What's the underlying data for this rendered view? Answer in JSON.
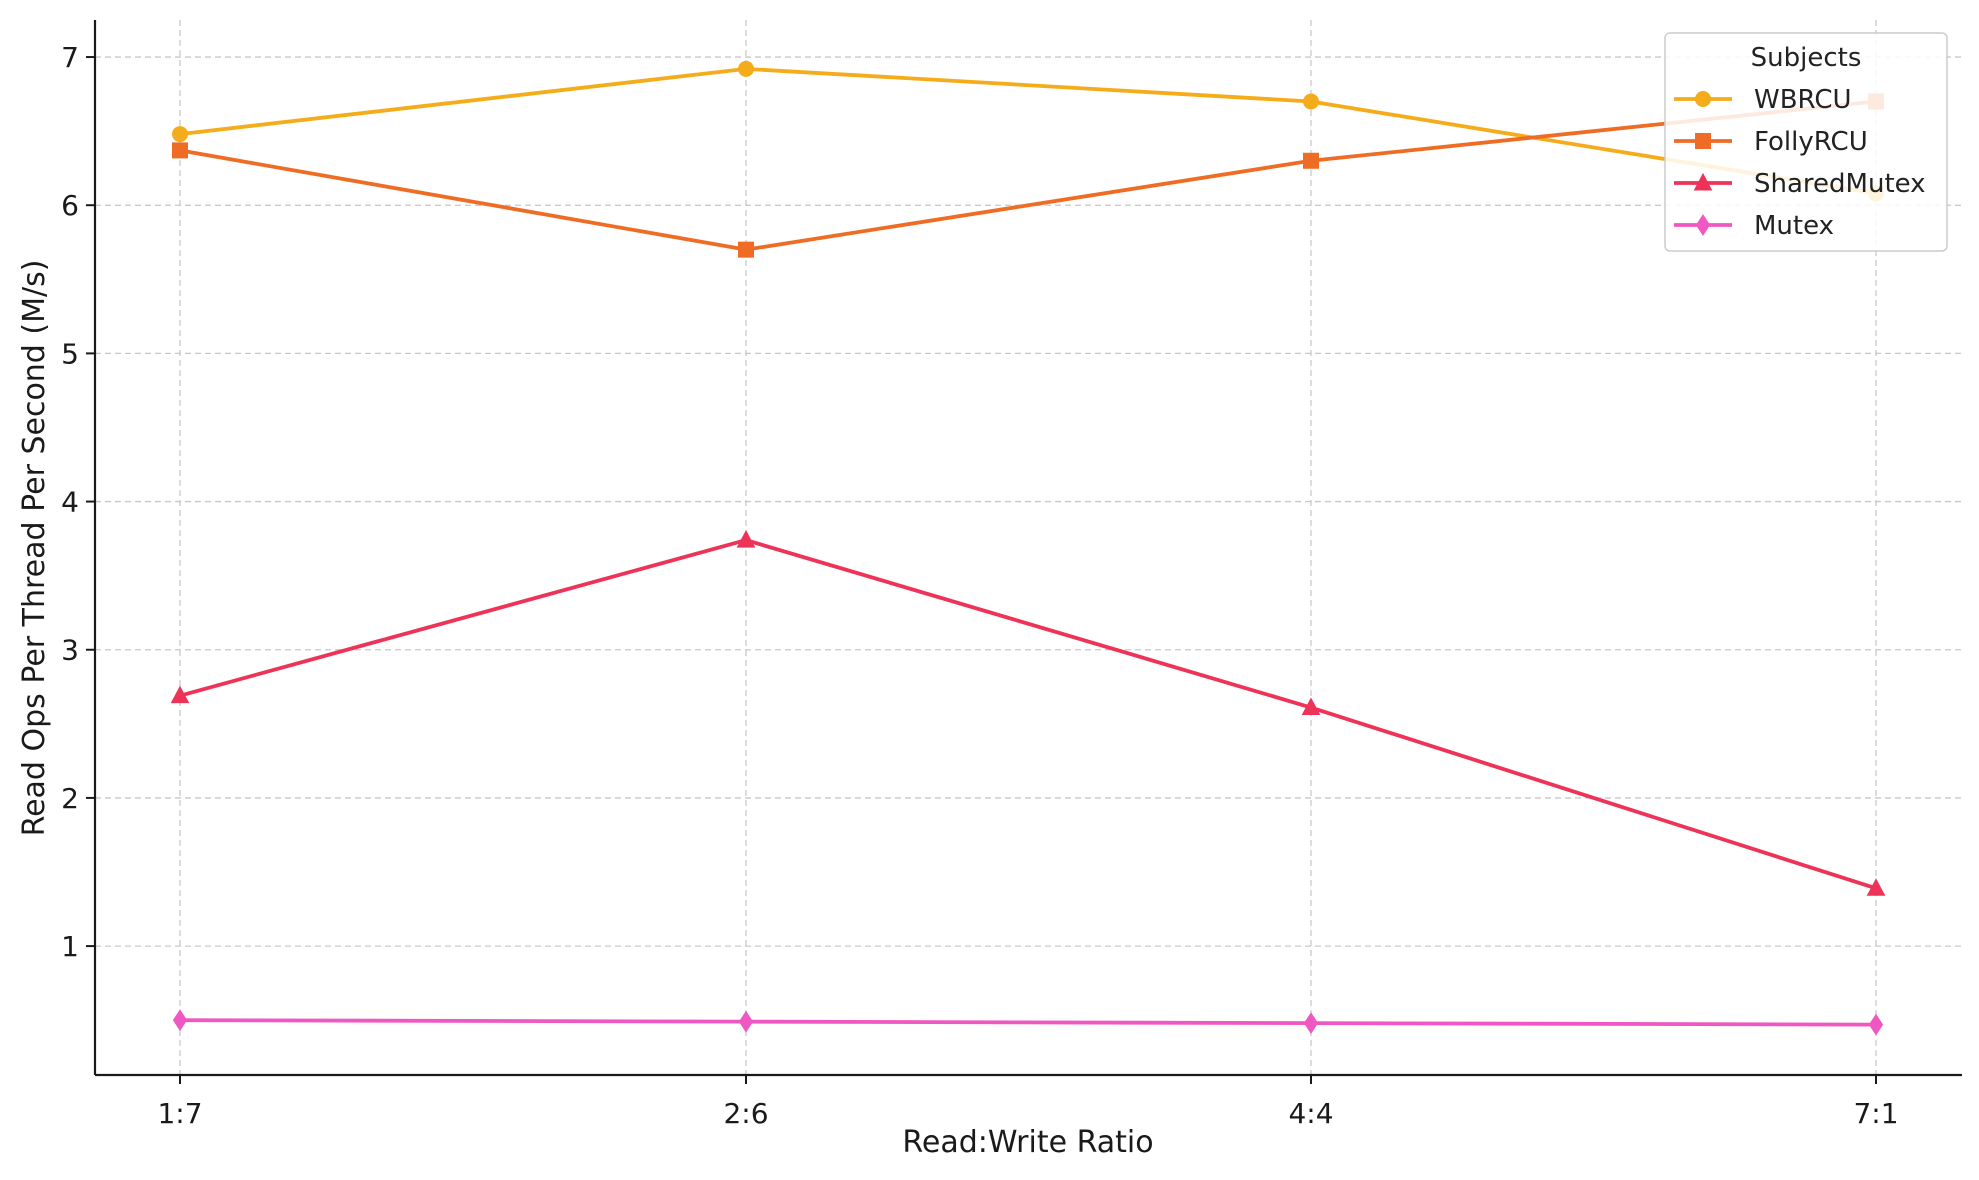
{
  "chart_data": {
    "type": "line",
    "title": "",
    "xlabel": "Read:Write Ratio",
    "ylabel": "Read Ops Per Thread Per Second (M/s)",
    "categories": [
      "1:7",
      "2:6",
      "4:4",
      "7:1"
    ],
    "ylim": [
      0.13,
      7.25
    ],
    "yticks": [
      1,
      2,
      3,
      4,
      5,
      6,
      7
    ],
    "grid": true,
    "legend": {
      "title": "Subjects",
      "placement": "top-right"
    },
    "series": [
      {
        "name": "WBRCU",
        "values": [
          6.48,
          6.92,
          6.7,
          6.08
        ],
        "color": "#f5ac1b",
        "marker": "circle"
      },
      {
        "name": "FollyRCU",
        "values": [
          6.37,
          5.7,
          6.3,
          6.7
        ],
        "color": "#ef6c25",
        "marker": "square"
      },
      {
        "name": "SharedMutex",
        "values": [
          2.69,
          3.74,
          2.61,
          1.39
        ],
        "color": "#ee3358",
        "marker": "triangle"
      },
      {
        "name": "Mutex",
        "values": [
          0.5,
          0.49,
          0.48,
          0.47
        ],
        "color": "#ef57c2",
        "marker": "diamond"
      }
    ]
  }
}
